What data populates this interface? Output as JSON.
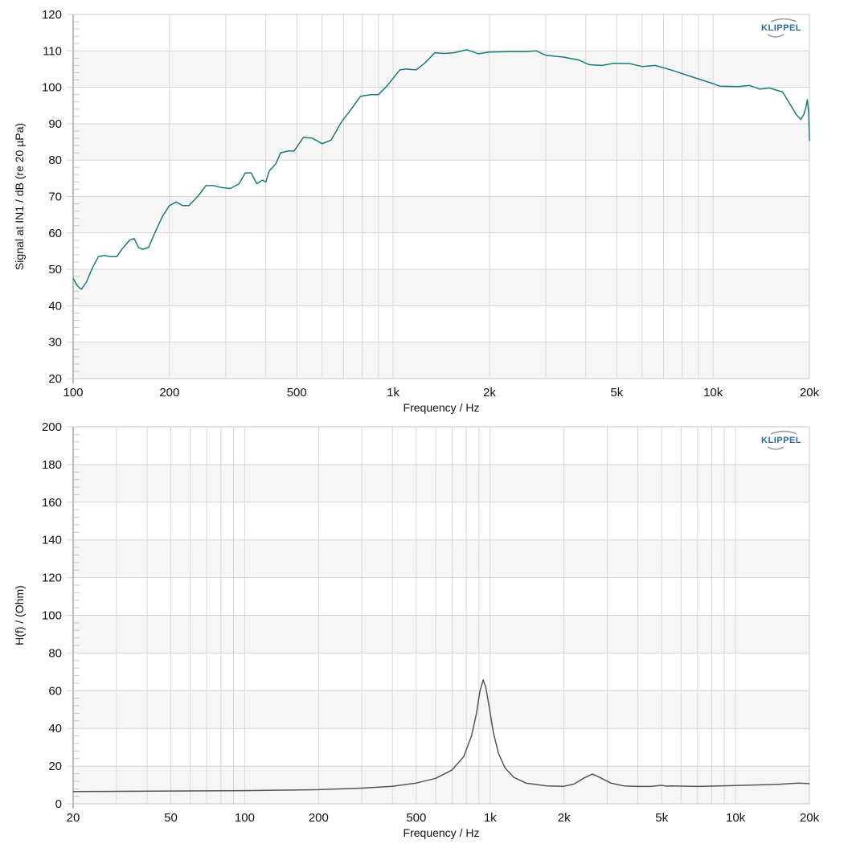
{
  "chart_data": [
    {
      "type": "line",
      "xlabel": "Frequency / Hz",
      "ylabel": "Signal at IN1 / dB (re 20 µPa)",
      "xscale": "log",
      "xlim": [
        100,
        20000
      ],
      "ylim": [
        20,
        120
      ],
      "xticks": [
        100,
        200,
        500,
        1000,
        2000,
        5000,
        10000,
        20000
      ],
      "xtick_labels": [
        "100",
        "200",
        "500",
        "1k",
        "2k",
        "5k",
        "10k",
        "20k"
      ],
      "yticks": [
        20,
        30,
        40,
        50,
        60,
        70,
        80,
        90,
        100,
        110,
        120
      ],
      "grid": true,
      "logo": "KLIPPEL",
      "line_color": "#1b7b78",
      "series": [
        {
          "x": [
            100,
            103,
            106,
            110,
            115,
            120,
            125,
            130,
            137,
            142,
            150,
            155,
            160,
            165,
            172,
            180,
            190,
            200,
            210,
            220,
            230,
            245,
            260,
            275,
            290,
            310,
            330,
            345,
            360,
            375,
            390,
            400,
            410,
            430,
            445,
            470,
            490,
            525,
            560,
            600,
            640,
            690,
            740,
            790,
            850,
            900,
            960,
            1000,
            1050,
            1100,
            1180,
            1250,
            1350,
            1450,
            1550,
            1700,
            1850,
            2000,
            2300,
            2600,
            2800,
            3000,
            3400,
            3800,
            4100,
            4500,
            4900,
            5500,
            6000,
            6600,
            7500,
            8500,
            10000,
            10500,
            12000,
            13000,
            14000,
            15000,
            16500,
            17500,
            18200,
            18800,
            19200,
            19500,
            19700,
            19900,
            20000
          ],
          "y": [
            47.5,
            45.5,
            44.5,
            46.5,
            50.5,
            53.5,
            53.8,
            53.5,
            53.5,
            55.5,
            58,
            58.5,
            56,
            55.5,
            56,
            60,
            64.5,
            67.5,
            68.5,
            67.5,
            67.5,
            70,
            73,
            73,
            72.5,
            72.2,
            73.5,
            76.5,
            76.5,
            73.5,
            74.5,
            74,
            77,
            79,
            82,
            82.5,
            82.5,
            86.3,
            86,
            84.5,
            85.5,
            90.5,
            94,
            97.5,
            98,
            98,
            100.5,
            102.5,
            104.8,
            105,
            104.8,
            106.5,
            109.5,
            109.3,
            109.5,
            110.3,
            109.2,
            109.7,
            109.8,
            109.8,
            110,
            108.8,
            108.3,
            107.5,
            106.2,
            106,
            106.6,
            106.5,
            105.7,
            106,
            104.6,
            103,
            101,
            100.3,
            100.2,
            100.5,
            99.5,
            99.8,
            98.7,
            95,
            92.5,
            91.2,
            92.5,
            94.5,
            96.6,
            93,
            85.3
          ]
        }
      ]
    },
    {
      "type": "line",
      "xlabel": "Frequency / Hz",
      "ylabel": "H(f) / (Ohm)",
      "xscale": "log",
      "xlim": [
        20,
        20000
      ],
      "ylim": [
        0,
        200
      ],
      "xticks": [
        20,
        50,
        100,
        200,
        500,
        1000,
        2000,
        5000,
        10000,
        20000
      ],
      "xtick_labels": [
        "20",
        "50",
        "100",
        "200",
        "500",
        "1k",
        "2k",
        "5k",
        "10k",
        "20k"
      ],
      "yticks": [
        0,
        20,
        40,
        60,
        80,
        100,
        120,
        140,
        160,
        180,
        200
      ],
      "grid": true,
      "logo": "KLIPPEL",
      "line_color": "#555555",
      "series": [
        {
          "x": [
            20,
            50,
            100,
            200,
            300,
            400,
            500,
            600,
            700,
            780,
            840,
            880,
            910,
            937,
            960,
            990,
            1030,
            1080,
            1150,
            1250,
            1400,
            1700,
            2000,
            2200,
            2400,
            2610,
            2800,
            3100,
            3500,
            4000,
            4500,
            5000,
            5200,
            5500,
            7000,
            10000,
            15000,
            18000,
            20000
          ],
          "y": [
            6.5,
            6.8,
            7,
            7.5,
            8.3,
            9.3,
            11,
            13.5,
            18,
            25,
            36,
            48,
            60,
            65.7,
            62,
            52,
            38,
            27,
            19,
            14,
            11,
            9.5,
            9.3,
            10.5,
            13.5,
            15.8,
            14,
            11,
            9.5,
            9.2,
            9.2,
            9.8,
            9.4,
            9.5,
            9.2,
            9.7,
            10.3,
            11,
            10.7
          ]
        }
      ]
    }
  ]
}
